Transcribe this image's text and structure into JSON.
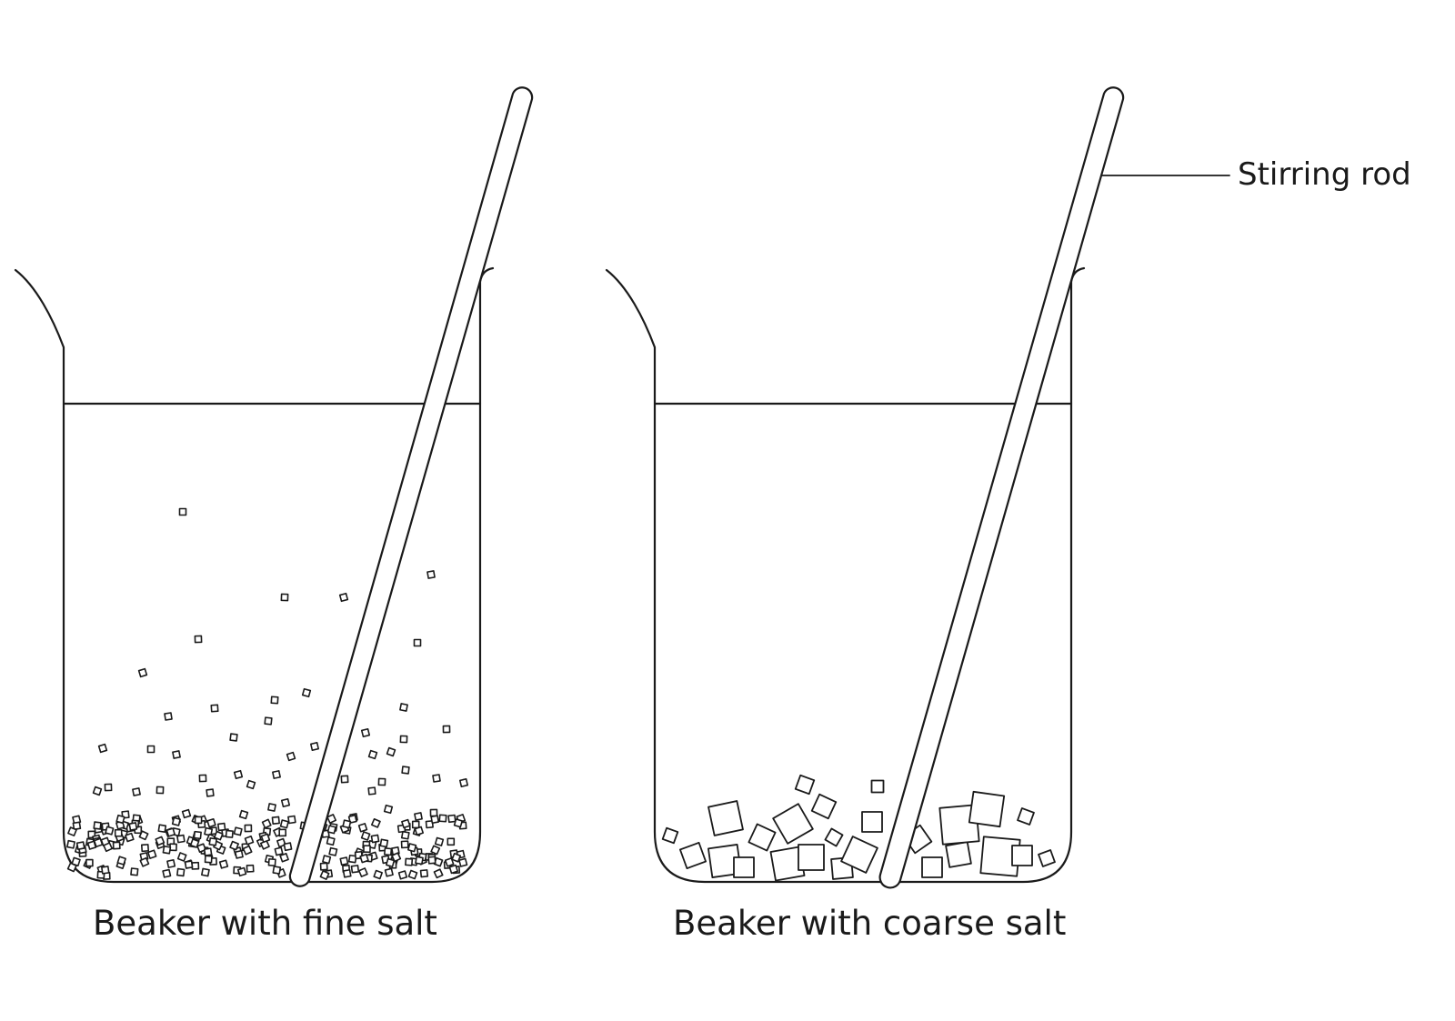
{
  "diagram": {
    "beakers": [
      {
        "id": "fine",
        "caption": "Beaker with fine salt",
        "salt_grain": "fine"
      },
      {
        "id": "coarse",
        "caption": "Beaker with coarse salt",
        "salt_grain": "coarse"
      }
    ],
    "callouts": {
      "stirring_rod": "Stirring rod"
    },
    "colors": {
      "stroke": "#1a1a1a",
      "background": "#ffffff"
    }
  }
}
